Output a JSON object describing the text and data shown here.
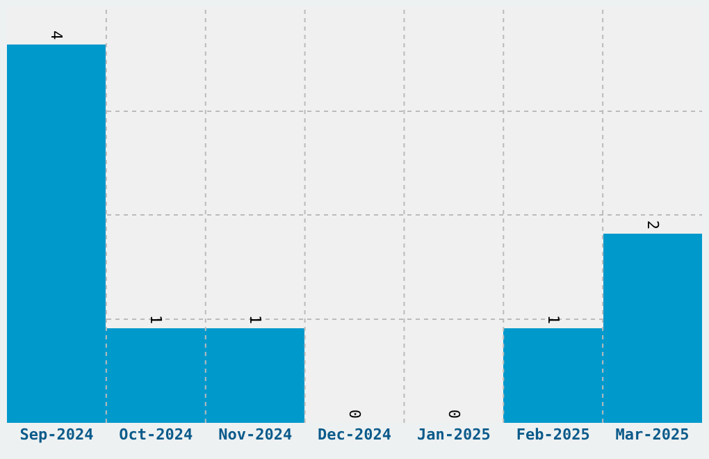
{
  "chart_data": {
    "type": "bar",
    "categories": [
      "Sep-2024",
      "Oct-2024",
      "Nov-2024",
      "Dec-2024",
      "Jan-2025",
      "Feb-2025",
      "Mar-2025"
    ],
    "values": [
      4,
      1,
      1,
      0,
      0,
      1,
      2
    ],
    "color": "#0099cc",
    "ylim": [
      0,
      4.4
    ],
    "yticks": [
      {
        "value": 1.1,
        "label": null
      },
      {
        "value": 2.2,
        "label": null
      },
      {
        "value": 3.3,
        "label": null
      }
    ],
    "tick_labels": "x",
    "data_labels": true,
    "grid": true
  }
}
